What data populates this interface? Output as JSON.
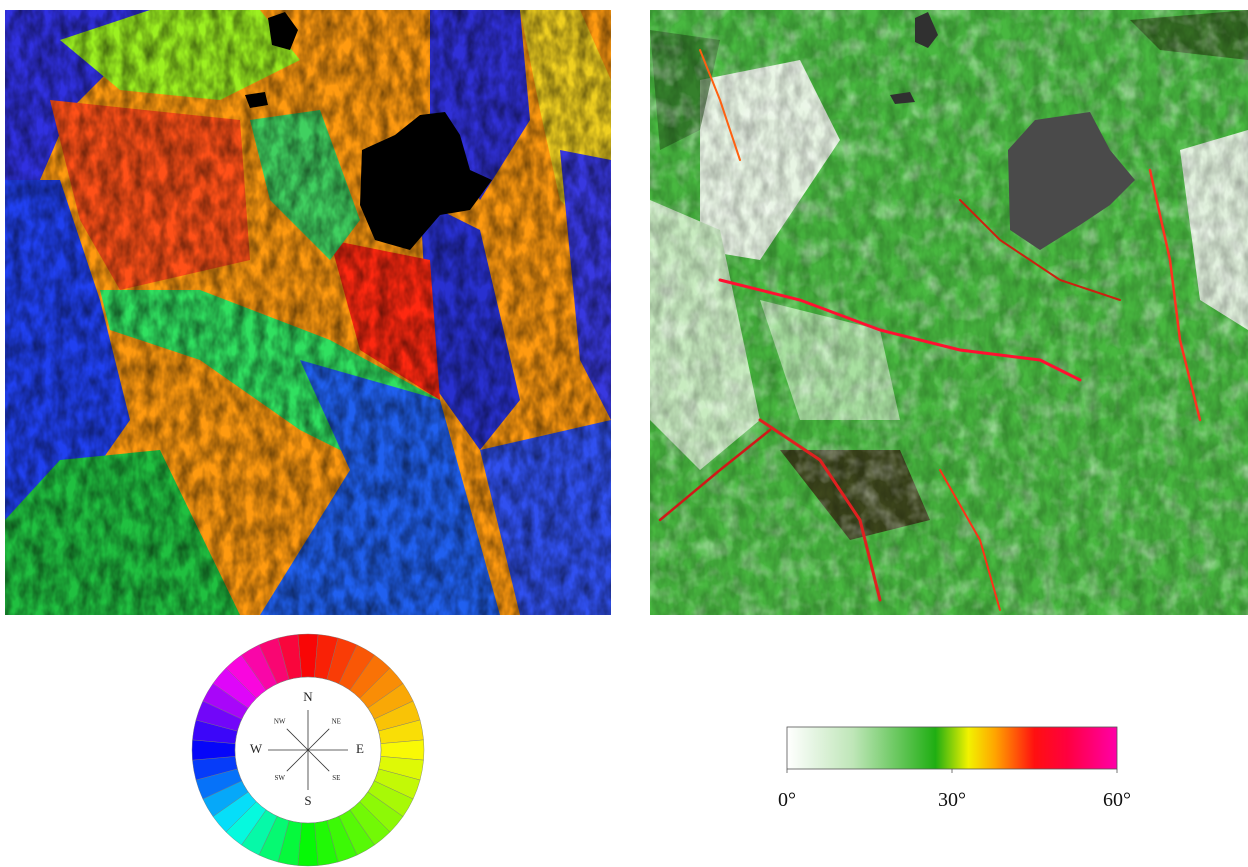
{
  "aspect_legend": {
    "directions": [
      "N",
      "NE",
      "E",
      "SE",
      "S",
      "SW",
      "W",
      "NW"
    ]
  },
  "slope_legend": {
    "lim": [
      0,
      60
    ],
    "ticks": [
      {
        "value": 0,
        "label": "0°"
      },
      {
        "value": 30,
        "label": "30°"
      },
      {
        "value": 60,
        "label": "60°"
      }
    ]
  }
}
